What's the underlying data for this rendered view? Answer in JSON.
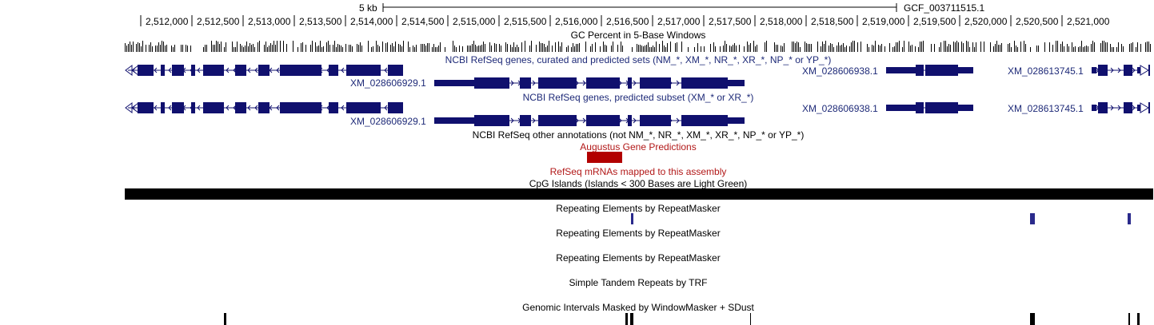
{
  "scale": {
    "label": "5 kb",
    "assembly": "GCF_003711515.1"
  },
  "ruler": {
    "positions": [
      "2,512,000",
      "2,512,500",
      "2,513,000",
      "2,513,500",
      "2,514,000",
      "2,514,500",
      "2,515,000",
      "2,515,500",
      "2,516,000",
      "2,516,500",
      "2,517,000",
      "2,517,500",
      "2,518,000",
      "2,518,500",
      "2,519,000",
      "2,519,500",
      "2,520,000",
      "2,520,500",
      "2,521,000"
    ]
  },
  "tracks": {
    "gc_percent": "GC Percent in 5-Base Windows",
    "refseq_all": "NCBI RefSeq genes, curated and predicted sets (NM_*, XM_*, NR_*, XR_*, NP_* or YP_*)",
    "refseq_predicted": "NCBI RefSeq genes, predicted subset (XM_* or XR_*)",
    "refseq_other": "NCBI RefSeq other annotations (not NM_*, NR_*, XM_*, XR_*, NP_* or YP_*)",
    "augustus": "Augustus Gene Predictions",
    "refseq_mrna": "RefSeq mRNAs mapped to this assembly",
    "cpg": "CpG Islands (Islands < 300 Bases are Light Green)",
    "rmsk1": "Repeating Elements by RepeatMasker",
    "rmsk2": "Repeating Elements by RepeatMasker",
    "rmsk3": "Repeating Elements by RepeatMasker",
    "trf": "Simple Tandem Repeats by TRF",
    "windowmasker": "Genomic Intervals Masked by WindowMasker + SDust"
  },
  "genes": {
    "g1": "XM_028606929.1",
    "g2": "XM_028606938.1",
    "g3": "XM_028613745.1"
  },
  "colors": {
    "gene": "#10106e",
    "augustus": "#b20000",
    "repeat": "#2a2a8c",
    "black": "#000000"
  }
}
